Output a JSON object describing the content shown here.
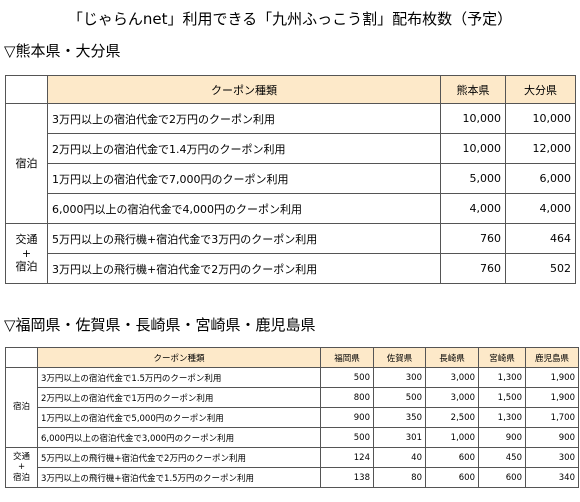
{
  "title": "「じゃらんnet」利用できる「九州ふっこう割」配布枚数（予定）",
  "tables": [
    {
      "heading": "▽熊本県・大分県",
      "columns": [
        "クーポン種類",
        "熊本県",
        "大分県"
      ],
      "groups": [
        {
          "label": [
            "宿泊"
          ],
          "rows": [
            [
              "3万円以上の宿泊代金で2万円のクーポン利用",
              "10,000",
              "10,000"
            ],
            [
              "2万円以上の宿泊代金で1.4万円のクーポン利用",
              "10,000",
              "12,000"
            ],
            [
              "1万円以上の宿泊代金で7,000円のクーポン利用",
              "5,000",
              "6,000"
            ],
            [
              "6,000円以上の宿泊代金で4,000円のクーポン利用",
              "4,000",
              "4,000"
            ]
          ]
        },
        {
          "label": [
            "交通",
            "+",
            "宿泊"
          ],
          "rows": [
            [
              "5万円以上の飛行機+宿泊代金で3万円のクーポン利用",
              "760",
              "464"
            ],
            [
              "3万円以上の飛行機+宿泊代金で2万円のクーポン利用",
              "760",
              "502"
            ]
          ]
        }
      ]
    },
    {
      "heading": "▽福岡県・佐賀県・長崎県・宮崎県・鹿児島県",
      "columns": [
        "クーポン種類",
        "福岡県",
        "佐賀県",
        "長崎県",
        "宮崎県",
        "鹿児島県"
      ],
      "groups": [
        {
          "label": [
            "宿泊"
          ],
          "rows": [
            [
              "3万円以上の宿泊代金で1.5万円のクーポン利用",
              "500",
              "300",
              "3,000",
              "1,300",
              "1,900"
            ],
            [
              "2万円以上の宿泊代金で1万円のクーポン利用",
              "800",
              "500",
              "3,000",
              "1,500",
              "1,900"
            ],
            [
              "1万円以上の宿泊代金で5,000円のクーポン利用",
              "900",
              "350",
              "2,500",
              "1,300",
              "1,700"
            ],
            [
              "6,000円以上の宿泊代金で3,000円のクーポン利用",
              "500",
              "301",
              "1,000",
              "900",
              "900"
            ]
          ]
        },
        {
          "label": [
            "交通",
            "+",
            "宿泊"
          ],
          "rows": [
            [
              "5万円以上の飛行機+宿泊代金で2万円のクーポン利用",
              "124",
              "40",
              "600",
              "450",
              "300"
            ],
            [
              "3万円以上の飛行機+宿泊代金で1.5万円のクーポン利用",
              "138",
              "80",
              "600",
              "600",
              "340"
            ]
          ]
        }
      ]
    }
  ]
}
